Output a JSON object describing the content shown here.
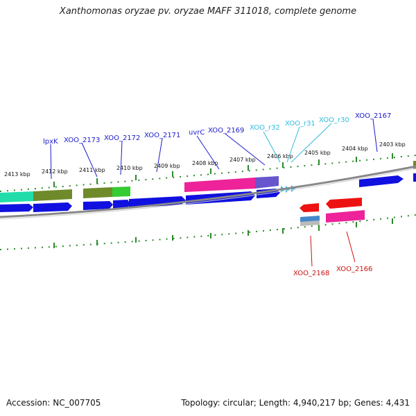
{
  "title": "Xanthomonas oryzae pv. oryzae MAFF 311018, complete genome",
  "footer": {
    "accession": "Accession: NC_007705",
    "stats": "Topology: circular; Length: 4,940,217 bp; Genes: 4,431"
  },
  "colors": {
    "blue_gene": "#1010e0",
    "trna_label": "#33bbdd",
    "top_label": "#1a1acc",
    "bottom_label": "#cc1111",
    "tick": "#2a8a2a",
    "backbone": "#888888"
  },
  "kbp_ticks": [
    "2413 kbp",
    "2412 kbp",
    "2411 kbp",
    "2410 kbp",
    "2409 kbp",
    "2408 kbp",
    "2407 kbp",
    "2406 kbp",
    "2405 kbp",
    "2404 kbp",
    "2403 kbp"
  ],
  "gene_labels_top": [
    "lpxK",
    "XOO_2173",
    "XOO_2172",
    "XOO_2171",
    "uvrC",
    "XOO_2169",
    "XOO_r32",
    "XOO_r31",
    "XOO_r30",
    "XOO_2167"
  ],
  "gene_labels_bottom": [
    "XOO_2168",
    "XOO_2166"
  ],
  "features": {
    "forward_genes": [
      "blue",
      "blue",
      "blue",
      "blue",
      "blue",
      "blue",
      "blue",
      "blue"
    ],
    "trna_markers": [
      "tRNA",
      "tRNA",
      "tRNA"
    ],
    "reverse_genes": [
      "red",
      "red"
    ]
  }
}
